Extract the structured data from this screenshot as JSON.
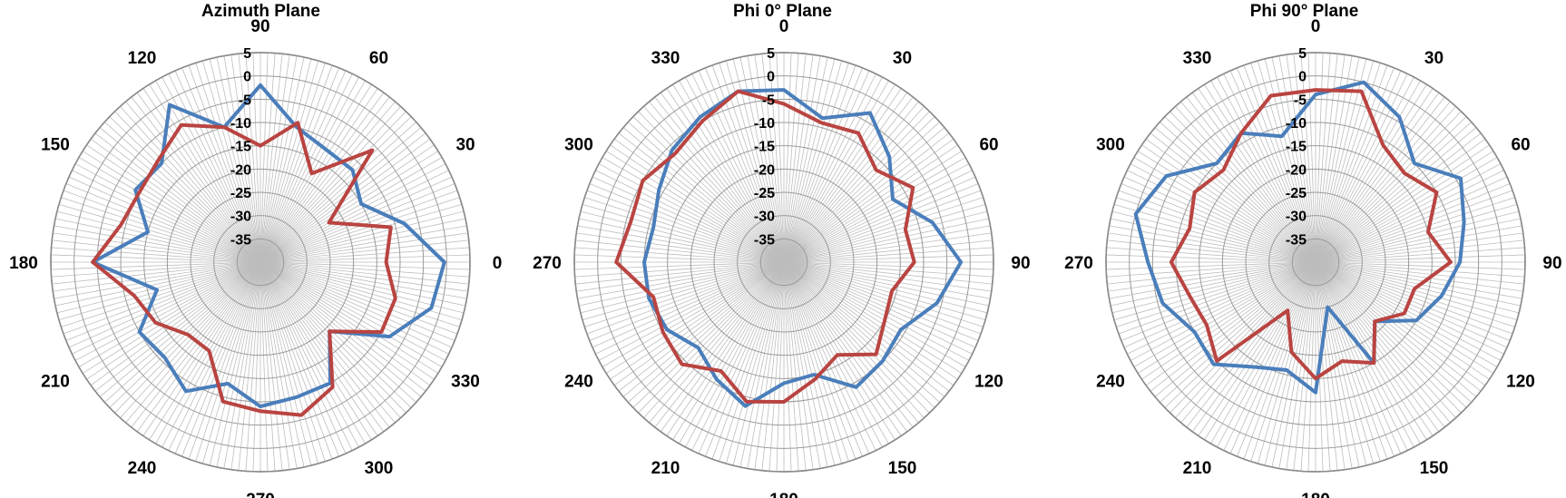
{
  "chart_data": [
    {
      "type": "line",
      "subtype": "polar",
      "title": "Azimuth Plane",
      "angle_labels": [
        "90",
        "60",
        "30",
        "0",
        "330",
        "300",
        "270",
        "240",
        "210",
        "180",
        "150",
        "120"
      ],
      "angle_direction": "counterclockwise",
      "zero_position": "right",
      "radial_ticks": [
        "5",
        "0",
        "-5",
        "-10",
        "-15",
        "-20",
        "-25",
        "-30",
        "-35"
      ],
      "rlim": [
        -40,
        5
      ],
      "grid": true,
      "legend": "none",
      "colors": [
        "#4a7ebb",
        "#b94441"
      ],
      "series": [
        {
          "angle": [
            0,
            15,
            30,
            45,
            60,
            75,
            90,
            105,
            120,
            135,
            150,
            165,
            180,
            195,
            210,
            225,
            240,
            255,
            270,
            285,
            300,
            315,
            330,
            345
          ],
          "values": [
            -0.5,
            -8,
            -15,
            -12,
            -12,
            -10,
            -2,
            -10,
            -1,
            -10,
            -9,
            -15,
            -4,
            -17,
            -10,
            -11,
            -8,
            -13,
            -9,
            -10,
            -10,
            -19,
            -8,
            -2
          ]
        },
        {
          "angle": [
            0,
            15,
            30,
            45,
            60,
            75,
            90,
            105,
            120,
            135,
            150,
            165,
            180,
            195,
            210,
            225,
            240,
            255,
            270,
            285,
            300,
            315,
            330,
            345
          ],
          "values": [
            -13,
            -11,
            -23,
            -6,
            -18,
            -9,
            -15,
            -10,
            -6,
            -9,
            -10,
            -9,
            -4,
            -12,
            -14,
            -18,
            -18,
            -9,
            -8,
            -6,
            -9,
            -19,
            -10,
            -10
          ]
        }
      ]
    },
    {
      "type": "line",
      "subtype": "polar",
      "title": "Phi 0° Plane",
      "angle_labels": [
        "0",
        "30",
        "60",
        "90",
        "120",
        "150",
        "180",
        "210",
        "240",
        "270",
        "300",
        "330"
      ],
      "angle_direction": "clockwise",
      "zero_position": "top",
      "radial_ticks": [
        "5",
        "0",
        "-5",
        "-10",
        "-15",
        "-20",
        "-25",
        "-30",
        "-35"
      ],
      "rlim": [
        -40,
        5
      ],
      "grid": true,
      "legend": "none",
      "colors": [
        "#4a7ebb",
        "#b94441"
      ],
      "series": [
        {
          "angle": [
            0,
            15,
            30,
            45,
            60,
            75,
            90,
            105,
            120,
            135,
            150,
            165,
            180,
            195,
            210,
            225,
            240,
            255,
            270,
            285,
            300,
            315,
            330,
            345
          ],
          "values": [
            -3,
            -8,
            -3,
            -8,
            -13,
            -7,
            -2,
            -6,
            -11,
            -10,
            -9,
            -15,
            -14,
            -8,
            -11,
            -14,
            -11,
            -10,
            -10,
            -11,
            -9,
            -6,
            -4,
            -2
          ]
        },
        {
          "angle": [
            0,
            15,
            30,
            45,
            60,
            75,
            90,
            105,
            120,
            135,
            150,
            165,
            180,
            195,
            210,
            225,
            240,
            255,
            270,
            285,
            300,
            315,
            330,
            345
          ],
          "values": [
            -6,
            -9,
            -8,
            -12,
            -8,
            -13,
            -12,
            -16,
            -15,
            -12,
            -17,
            -14,
            -10,
            -9,
            -13,
            -9,
            -10,
            -11,
            -4,
            -6,
            -5,
            -7,
            -5,
            -2
          ]
        }
      ]
    },
    {
      "type": "line",
      "subtype": "polar",
      "title": "Phi 90° Plane",
      "angle_labels": [
        "0",
        "30",
        "60",
        "90",
        "120",
        "150",
        "180",
        "210",
        "240",
        "270",
        "300",
        "330"
      ],
      "angle_direction": "clockwise",
      "zero_position": "top",
      "radial_ticks": [
        "5",
        "0",
        "-5",
        "-10",
        "-15",
        "-20",
        "-25",
        "-30",
        "-35"
      ],
      "rlim": [
        -40,
        5
      ],
      "grid": true,
      "legend": "none",
      "colors": [
        "#4a7ebb",
        "#b94441"
      ],
      "series": [
        {
          "angle": [
            0,
            15,
            30,
            45,
            60,
            75,
            90,
            105,
            120,
            135,
            150,
            165,
            180,
            195,
            210,
            225,
            240,
            255,
            270,
            285,
            300,
            315,
            330,
            345
          ],
          "values": [
            -4,
            0,
            -4,
            -10,
            -4,
            -7,
            -9,
            -12,
            -15,
            -22,
            -15,
            -30,
            -12,
            -16,
            -14,
            -9,
            -10,
            -6,
            -4,
            0,
            -3,
            -10,
            -8,
            -12
          ]
        },
        {
          "angle": [
            0,
            15,
            30,
            45,
            60,
            75,
            90,
            105,
            120,
            135,
            150,
            165,
            180,
            195,
            210,
            225,
            240,
            255,
            270,
            285,
            300,
            315,
            330,
            345
          ],
          "values": [
            -3,
            -2,
            -11,
            -13,
            -10,
            -15,
            -11,
            -18,
            -18,
            -22,
            -15,
            -18,
            -15,
            -20,
            -28,
            -10,
            -13,
            -12,
            -9,
            -12,
            -10,
            -12,
            -8,
            -3
          ]
        }
      ]
    }
  ]
}
